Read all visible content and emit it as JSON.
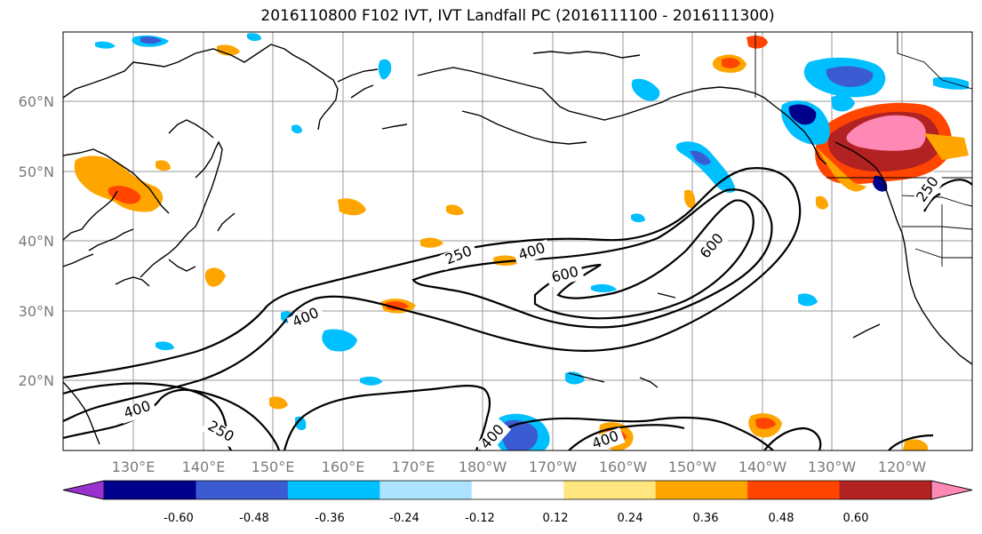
{
  "title": "2016110800 F102 IVT, IVT Landfall PC (2016111100 - 2016111300)",
  "lat_labels": [
    "60°N",
    "50°N",
    "40°N",
    "30°N",
    "20°N"
  ],
  "lon_labels": [
    "130°E",
    "140°E",
    "150°E",
    "160°E",
    "170°E",
    "180°W",
    "170°W",
    "160°W",
    "150°W",
    "140°W",
    "130°W",
    "120°W"
  ],
  "contour_labels": [
    "250",
    "400",
    "600",
    "400",
    "600",
    "400",
    "250",
    "400",
    "400",
    "250"
  ],
  "colorbar": {
    "colors": [
      "#9932cc",
      "#00008b",
      "#3a5bd1",
      "#00bfff",
      "#aee3ff",
      "#ffffff",
      "#ffe680",
      "#ffa500",
      "#ff4500",
      "#b22222",
      "#ff88b4"
    ],
    "tick_labels": [
      "-0.60",
      "-0.48",
      "-0.36",
      "-0.24",
      "-0.12",
      "0.12",
      "0.24",
      "0.36",
      "0.48",
      "0.60"
    ]
  }
}
